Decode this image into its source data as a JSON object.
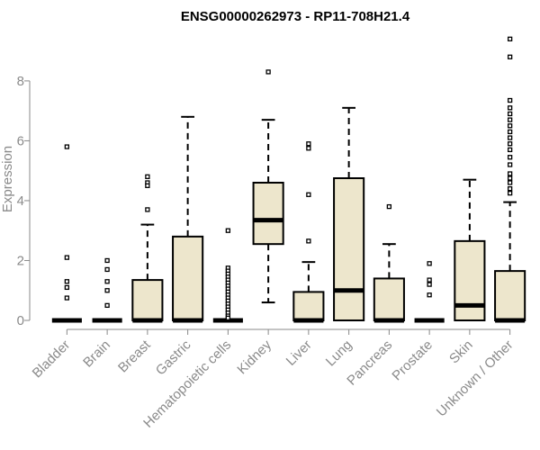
{
  "chart_data": {
    "type": "box",
    "title": "ENSG00000262973 - RP11-708H21.4",
    "ylabel": "Expression",
    "xlabel": "",
    "ylim": [
      0,
      9.5
    ],
    "yticks": [
      0,
      2,
      4,
      6,
      8
    ],
    "box_fill": "#ede6cc",
    "outlier_marker": "open-square",
    "categories": [
      "Bladder",
      "Brain",
      "Breast",
      "Gastric",
      "Hematopoietic cells",
      "Kidney",
      "Liver",
      "Lung",
      "Pancreas",
      "Prostate",
      "Skin",
      "Unknown / Other"
    ],
    "boxes": [
      {
        "category": "Bladder",
        "q1": 0,
        "median": 0,
        "q3": 0,
        "whisker_low": 0,
        "whisker_high": 0,
        "outliers": [
          5.8,
          2.1,
          1.3,
          1.1,
          0.75
        ]
      },
      {
        "category": "Brain",
        "q1": 0,
        "median": 0,
        "q3": 0,
        "whisker_low": 0,
        "whisker_high": 0,
        "outliers": [
          2.0,
          1.7,
          1.3,
          1.0,
          0.5
        ]
      },
      {
        "category": "Breast",
        "q1": 0,
        "median": 0,
        "q3": 1.35,
        "whisker_low": 0,
        "whisker_high": 3.2,
        "outliers": [
          4.8,
          4.6,
          4.5,
          3.7
        ]
      },
      {
        "category": "Gastric",
        "q1": 0,
        "median": 0,
        "q3": 2.8,
        "whisker_low": 0,
        "whisker_high": 6.8,
        "outliers": []
      },
      {
        "category": "Hematopoietic cells",
        "q1": 0,
        "median": 0,
        "q3": 0,
        "whisker_low": 0,
        "whisker_high": 0,
        "outliers": [
          3.0,
          1.75,
          1.65,
          1.55,
          1.45,
          1.35,
          1.25,
          1.15,
          1.05,
          0.95,
          0.85,
          0.75,
          0.65,
          0.55,
          0.45,
          0.35,
          0.25,
          0.15,
          0.08
        ]
      },
      {
        "category": "Kidney",
        "q1": 2.55,
        "median": 3.35,
        "q3": 4.6,
        "whisker_low": 0.6,
        "whisker_high": 6.7,
        "outliers": [
          8.3
        ]
      },
      {
        "category": "Liver",
        "q1": 0,
        "median": 0,
        "q3": 0.95,
        "whisker_low": 0,
        "whisker_high": 1.95,
        "outliers": [
          5.9,
          5.75,
          4.2,
          2.65
        ]
      },
      {
        "category": "Lung",
        "q1": 0,
        "median": 1.0,
        "q3": 4.75,
        "whisker_low": 0,
        "whisker_high": 7.1,
        "outliers": []
      },
      {
        "category": "Pancreas",
        "q1": 0,
        "median": 0,
        "q3": 1.4,
        "whisker_low": 0,
        "whisker_high": 2.55,
        "outliers": [
          3.8
        ]
      },
      {
        "category": "Prostate",
        "q1": 0,
        "median": 0,
        "q3": 0,
        "whisker_low": 0,
        "whisker_high": 0,
        "outliers": [
          1.9,
          1.35,
          1.2,
          0.85
        ]
      },
      {
        "category": "Skin",
        "q1": 0,
        "median": 0.5,
        "q3": 2.65,
        "whisker_low": 0,
        "whisker_high": 4.7,
        "outliers": []
      },
      {
        "category": "Unknown / Other",
        "q1": 0,
        "median": 0,
        "q3": 1.65,
        "whisker_low": 0,
        "whisker_high": 3.95,
        "outliers": [
          9.4,
          8.8,
          7.35,
          7.1,
          6.9,
          6.7,
          6.5,
          6.3,
          6.1,
          5.9,
          5.7,
          5.45,
          5.2,
          4.9,
          4.75,
          4.6,
          4.4,
          4.25
        ]
      }
    ]
  }
}
